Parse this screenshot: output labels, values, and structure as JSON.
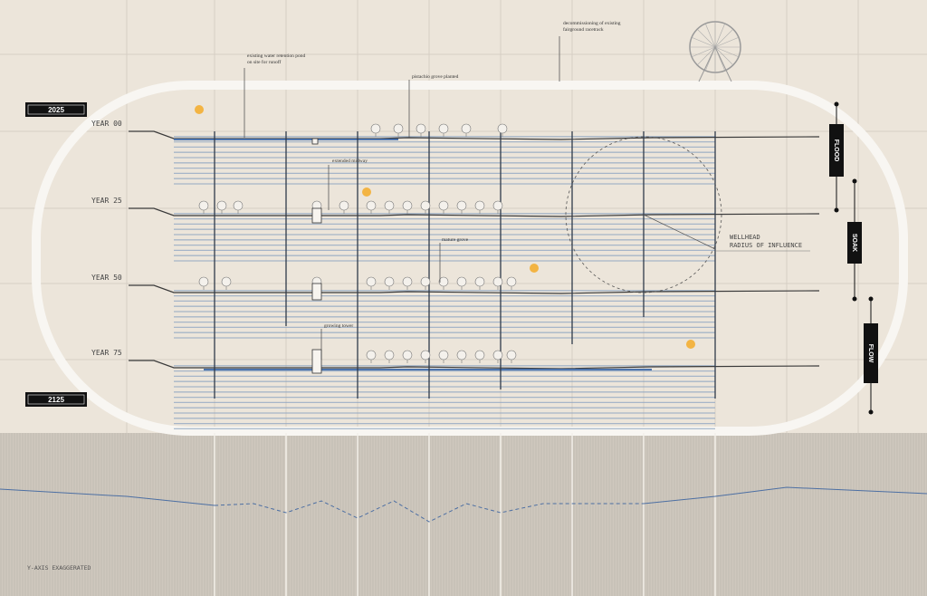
{
  "tags": {
    "start": "2025",
    "end": "2125"
  },
  "years": [
    "YEAR 00",
    "YEAR 25",
    "YEAR 50",
    "YEAR 75"
  ],
  "annotations": [
    {
      "lines": [
        "existing water retention pond",
        "on site for runoff"
      ]
    },
    {
      "lines": [
        "pistachio grove planted"
      ]
    },
    {
      "lines": [
        "decommissioning of existing",
        "fairground racetrack"
      ]
    },
    {
      "lines": [
        "extended midway"
      ]
    },
    {
      "lines": [
        "mature grove"
      ]
    },
    {
      "lines": [
        "growing tower"
      ]
    }
  ],
  "wellhead": {
    "lines": [
      "WELLHEAD",
      "RADIUS OF INFLUENCE"
    ]
  },
  "phases": [
    "FLOOD",
    "SOAK",
    "FLOW"
  ],
  "footer": "Y-AXIS EXAGGERATED"
}
